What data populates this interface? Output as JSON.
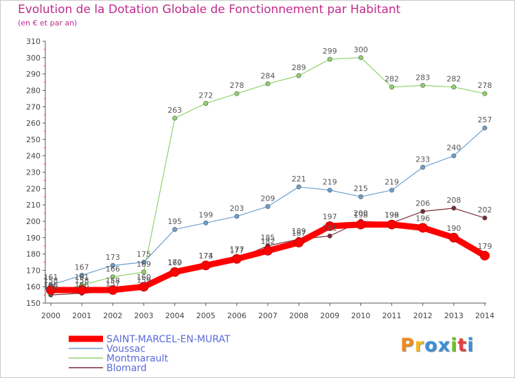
{
  "page": {
    "title": "Evolution de la Dotation Globale de Fonctionnement par Habitant",
    "subtitle": "(en € et par an)"
  },
  "logo": {
    "text": "Proxiti",
    "colors": [
      "#f08a1e",
      "#f0b91e",
      "#3a8fd8",
      "#3a8fd8",
      "#6fbf2e",
      "#e83e3e",
      "#3a8fd8"
    ]
  },
  "chart_data": {
    "type": "line",
    "title": "Evolution de la Dotation Globale de Fonctionnement par Habitant",
    "subtitle": "(en € et par an)",
    "xlabel": "",
    "ylabel": "",
    "x": [
      "2000",
      "2001",
      "2002",
      "2003",
      "2004",
      "2005",
      "2006",
      "2007",
      "2008",
      "2009",
      "2010",
      "2011",
      "2012",
      "2013",
      "2014"
    ],
    "ylim": [
      150,
      310
    ],
    "yticks": [
      150,
      160,
      170,
      180,
      190,
      200,
      210,
      220,
      230,
      240,
      250,
      260,
      270,
      280,
      290,
      300,
      310
    ],
    "grid": false,
    "legend_position": "bottom-left",
    "series": [
      {
        "name": "SAINT-MARCEL-EN-MURAT",
        "color": "#ff0000",
        "thick": true,
        "values": [
          158,
          158,
          158,
          160,
          169,
          173,
          177,
          182,
          187,
          197,
          198,
          198,
          196,
          190,
          179
        ]
      },
      {
        "name": "Voussac",
        "color": "#6a9fd0",
        "thick": false,
        "values": [
          161,
          167,
          173,
          175,
          195,
          199,
          203,
          209,
          221,
          219,
          215,
          219,
          233,
          240,
          257
        ]
      },
      {
        "name": "Montmarault",
        "color": "#8fd16a",
        "thick": false,
        "values": [
          156,
          161,
          166,
          169,
          263,
          272,
          278,
          284,
          289,
          299,
          300,
          282,
          283,
          282,
          278
        ]
      },
      {
        "name": "Blomard",
        "color": "#7a2a36",
        "thick": false,
        "values": [
          155,
          156,
          157,
          159,
          170,
          174,
          177,
          185,
          189,
          191,
          200,
          199,
          206,
          208,
          202
        ]
      }
    ]
  }
}
